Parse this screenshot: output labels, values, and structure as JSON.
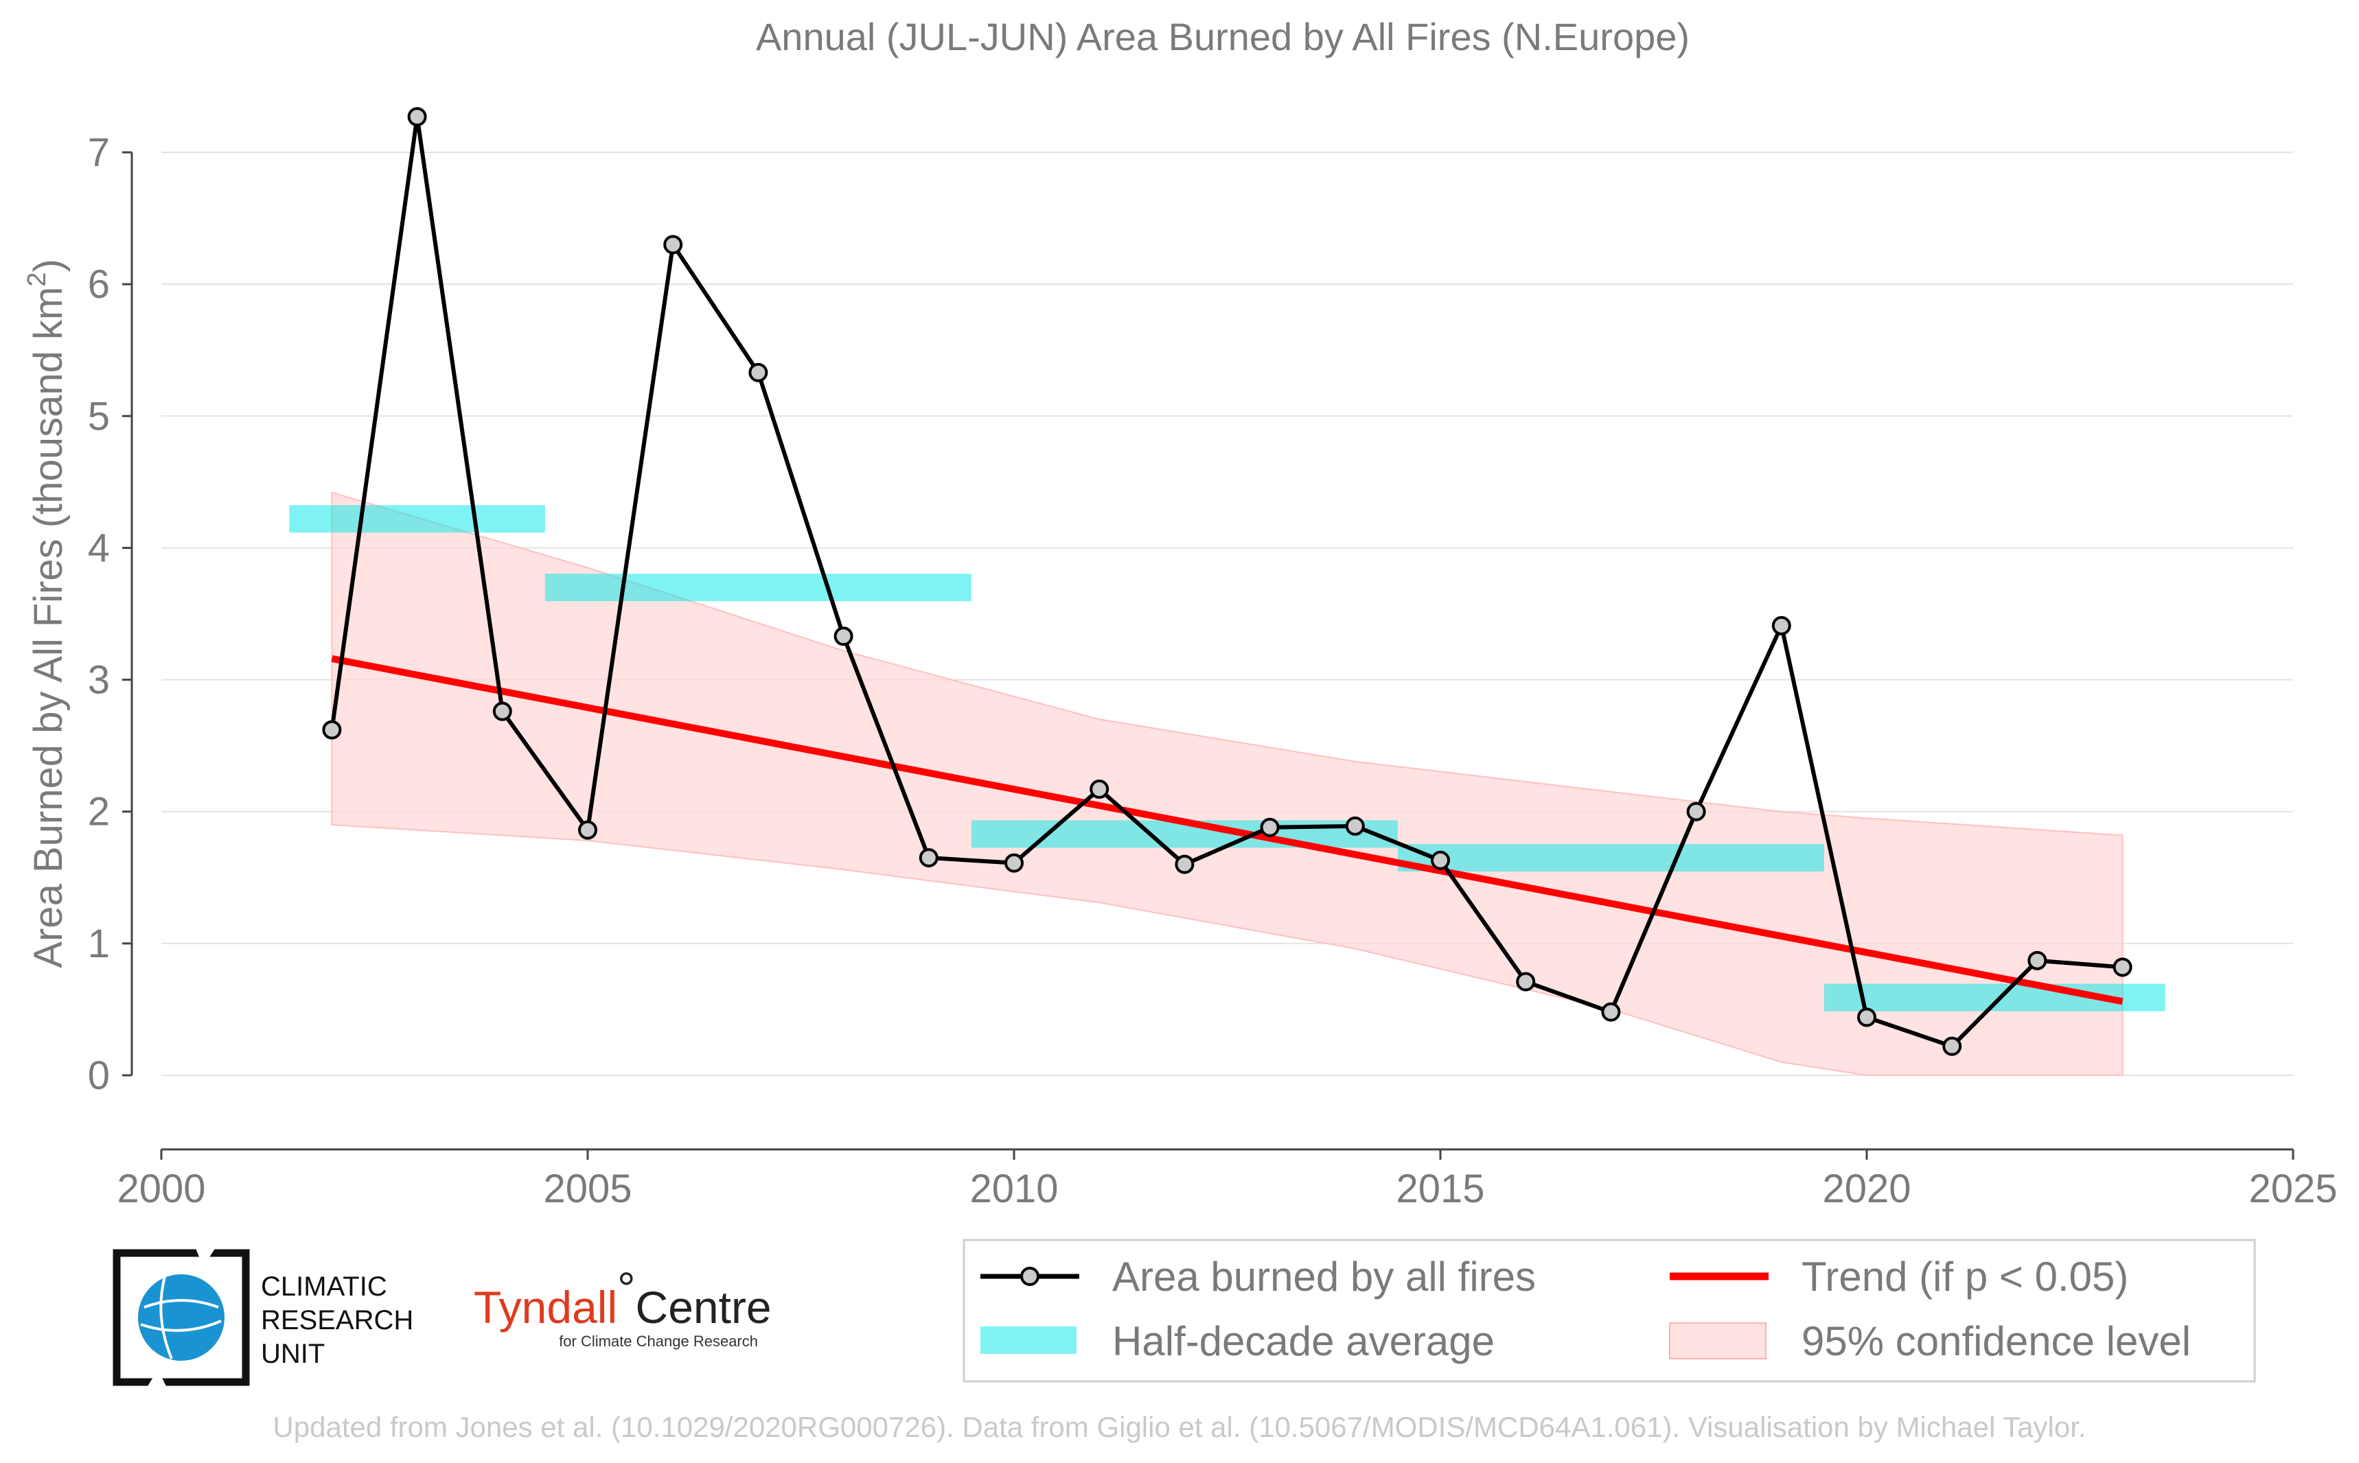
{
  "chart_data": {
    "type": "line",
    "title": "Annual (JUL-JUN) Area Burned by All Fires (N.Europe)",
    "ylabel_main": "Area Burned by All Fires (thousand km",
    "ylabel_sup": "2",
    "ylabel_close": ")",
    "xlim": [
      2000,
      2025
    ],
    "ylim": [
      -0.55,
      7.3
    ],
    "x_ticks": [
      2000,
      2005,
      2010,
      2015,
      2020,
      2025
    ],
    "y_ticks": [
      0,
      1,
      2,
      3,
      4,
      5,
      6,
      7
    ],
    "grid": "horizontal",
    "legend_position": "bottom-right",
    "series": [
      {
        "name": "Area burned by all fires",
        "type": "line-markers",
        "color": "#000000",
        "marker_fill": "#cccccc",
        "x": [
          2002,
          2003,
          2004,
          2005,
          2006,
          2007,
          2008,
          2009,
          2010,
          2011,
          2012,
          2013,
          2014,
          2015,
          2016,
          2017,
          2018,
          2019,
          2020,
          2021,
          2022,
          2023
        ],
        "y": [
          2.62,
          7.27,
          2.76,
          1.86,
          6.3,
          5.33,
          3.33,
          1.65,
          1.61,
          2.17,
          1.6,
          1.88,
          1.89,
          1.63,
          0.71,
          0.48,
          2.0,
          3.41,
          0.44,
          0.22,
          0.87,
          0.82
        ]
      },
      {
        "name": "Half-decade average",
        "type": "segments",
        "color": "#00e8e8",
        "segments": [
          {
            "x0": 2001.5,
            "x1": 2004.5,
            "y": 4.22
          },
          {
            "x0": 2004.5,
            "x1": 2009.5,
            "y": 3.7
          },
          {
            "x0": 2009.5,
            "x1": 2014.5,
            "y": 1.83
          },
          {
            "x0": 2014.5,
            "x1": 2019.5,
            "y": 1.65
          },
          {
            "x0": 2019.5,
            "x1": 2023.5,
            "y": 0.59
          }
        ]
      },
      {
        "name": "Trend (if p < 0.05)",
        "type": "line",
        "color": "#ff0000",
        "x": [
          2002,
          2023
        ],
        "y": [
          3.16,
          0.56
        ]
      },
      {
        "name": "95% confidence level",
        "type": "band",
        "color": "#ffd6d6",
        "x": [
          2002,
          2005,
          2008,
          2011,
          2014,
          2017,
          2019,
          2020,
          2023
        ],
        "upper": [
          4.42,
          3.85,
          3.22,
          2.7,
          2.38,
          2.15,
          2.0,
          1.95,
          1.82
        ],
        "lower": [
          1.9,
          1.78,
          1.56,
          1.31,
          0.96,
          0.5,
          0.1,
          0.0,
          0.0
        ]
      }
    ]
  },
  "legend": {
    "items": [
      {
        "label": "Area burned by all fires"
      },
      {
        "label": "Trend (if p < 0.05)"
      },
      {
        "label": "Half-decade average"
      },
      {
        "label": "95% confidence level"
      }
    ]
  },
  "logos": {
    "cru_line1": "CLIMATIC",
    "cru_line2": "RESEARCH",
    "cru_line3": "UNIT",
    "tyndall_main": "Tyndall",
    "tyndall_degree": "°",
    "tyndall_centre": "Centre",
    "tyndall_sub": "for Climate Change Research"
  },
  "footer": {
    "credit": "Updated from Jones et al. (10.1029/2020RG000726). Data from Giglio et al. (10.5067/MODIS/MCD64A1.061). Visualisation by Michael Taylor."
  },
  "colors": {
    "text_gray": "#7a7a7a",
    "grid": "#e3e3e3",
    "cru_blue": "#1a93d2",
    "tyndall_red": "#e03a1e"
  }
}
